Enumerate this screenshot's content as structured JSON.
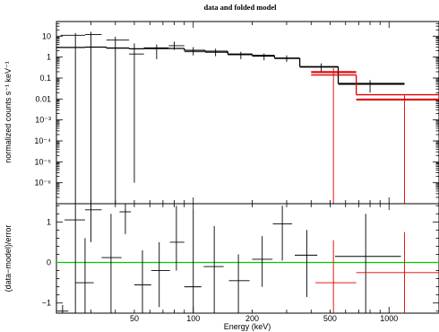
{
  "chart_data": [
    {
      "type": "scatter",
      "title": "data and folded model",
      "xlabel": "",
      "ylabel": "normalized counts s⁻¹ keV⁻¹",
      "x_scale": "log",
      "y_scale": "log",
      "xlim": [
        20,
        1800
      ],
      "ylim": [
        1e-07,
        50
      ],
      "y_ticks": [
        {
          "value": 10,
          "label": "10"
        },
        {
          "value": 1,
          "label": "1"
        },
        {
          "value": 0.1,
          "label": "0.1"
        },
        {
          "value": 0.01,
          "label": "0.01"
        },
        {
          "value": 0.001,
          "label": "10⁻³"
        },
        {
          "value": 0.0001,
          "label": "10⁻⁴"
        },
        {
          "value": 1e-05,
          "label": "10⁻⁵"
        },
        {
          "value": 1e-06,
          "label": "10⁻⁶"
        }
      ],
      "series": [
        {
          "color": "#000000",
          "style": "data-crosses",
          "points": [
            {
              "x": 25,
              "xlo": 21,
              "xhi": 28,
              "y": 11,
              "ylo": 1e-07,
              "yhi": 14
            },
            {
              "x": 30,
              "xlo": 28,
              "xhi": 34,
              "y": 12,
              "ylo": 1e-07,
              "yhi": 16
            },
            {
              "x": 40,
              "xlo": 36,
              "xhi": 47,
              "y": 6.5,
              "ylo": 1e-07,
              "yhi": 9.5
            },
            {
              "x": 50,
              "xlo": 47,
              "xhi": 56,
              "y": 1.4,
              "ylo": 1e-06,
              "yhi": 4.5
            },
            {
              "x": 65,
              "xlo": 56,
              "xhi": 75,
              "y": 2.5,
              "ylo": 0.8,
              "yhi": 4
            },
            {
              "x": 80,
              "xlo": 75,
              "xhi": 90,
              "y": 3.5,
              "ylo": 2.2,
              "yhi": 5.5
            },
            {
              "x": 100,
              "xlo": 90,
              "xhi": 115,
              "y": 1.8,
              "ylo": 1.2,
              "yhi": 3
            },
            {
              "x": 130,
              "xlo": 115,
              "xhi": 150,
              "y": 1.7,
              "ylo": 1.1,
              "yhi": 2.5
            },
            {
              "x": 175,
              "xlo": 150,
              "xhi": 200,
              "y": 1.3,
              "ylo": 0.8,
              "yhi": 1.8
            },
            {
              "x": 230,
              "xlo": 200,
              "xhi": 260,
              "y": 1.1,
              "ylo": 0.7,
              "yhi": 1.5
            },
            {
              "x": 300,
              "xlo": 260,
              "xhi": 350,
              "y": 0.85,
              "ylo": 0.6,
              "yhi": 1.2
            },
            {
              "x": 450,
              "xlo": 350,
              "xhi": 550,
              "y": 0.33,
              "ylo": 0.2,
              "yhi": 0.5
            },
            {
              "x": 800,
              "xlo": 550,
              "xhi": 1200,
              "y": 0.05,
              "ylo": 0.02,
              "yhi": 0.08
            }
          ]
        },
        {
          "color": "#e00000",
          "style": "data-crosses",
          "points": [
            {
              "x": 520,
              "xlo": 400,
              "xhi": 680,
              "y": 0.18,
              "ylo": 1e-07,
              "yhi": 0.3
            },
            {
              "x": 1200,
              "xlo": 680,
              "xhi": 1800,
              "y": 0.01,
              "ylo": 1e-07,
              "yhi": 0.015
            }
          ]
        },
        {
          "color": "#000000",
          "style": "model-steps",
          "steps": [
            {
              "xlo": 20,
              "xhi": 28,
              "y": 2.9
            },
            {
              "xlo": 28,
              "xhi": 36,
              "y": 3.0
            },
            {
              "xlo": 36,
              "xhi": 47,
              "y": 2.7
            },
            {
              "xlo": 47,
              "xhi": 56,
              "y": 2.5
            },
            {
              "xlo": 56,
              "xhi": 75,
              "y": 2.7
            },
            {
              "xlo": 75,
              "xhi": 90,
              "y": 2.6
            },
            {
              "xlo": 90,
              "xhi": 115,
              "y": 2.1
            },
            {
              "xlo": 115,
              "xhi": 150,
              "y": 1.9
            },
            {
              "xlo": 150,
              "xhi": 200,
              "y": 1.4
            },
            {
              "xlo": 200,
              "xhi": 260,
              "y": 1.2
            },
            {
              "xlo": 260,
              "xhi": 350,
              "y": 0.9
            },
            {
              "xlo": 350,
              "xhi": 550,
              "y": 0.35
            },
            {
              "xlo": 550,
              "xhi": 1200,
              "y": 0.055
            }
          ]
        },
        {
          "color": "#e00000",
          "style": "model-steps",
          "steps": [
            {
              "xlo": 400,
              "xhi": 680,
              "y": 0.2
            },
            {
              "xlo": 400,
              "xhi": 680,
              "y": 0.14
            },
            {
              "xlo": 680,
              "xhi": 1800,
              "y": 0.016
            },
            {
              "xlo": 680,
              "xhi": 1800,
              "y": 0.009
            }
          ]
        }
      ]
    },
    {
      "type": "scatter",
      "title": "",
      "xlabel": "Energy (keV)",
      "ylabel": "(data−model)/error",
      "x_scale": "log",
      "y_scale": "linear",
      "xlim": [
        20,
        1800
      ],
      "ylim": [
        -1.25,
        1.45
      ],
      "x_ticks": [
        {
          "value": 50,
          "label": "50"
        },
        {
          "value": 100,
          "label": "100"
        },
        {
          "value": 200,
          "label": "200"
        },
        {
          "value": 500,
          "label": "500"
        },
        {
          "value": 1000,
          "label": "1000"
        }
      ],
      "y_ticks": [
        {
          "value": 1,
          "label": "1"
        },
        {
          "value": 0,
          "label": "0"
        },
        {
          "value": -1,
          "label": "−1"
        }
      ],
      "reference_line": {
        "y": 0,
        "color": "#00cc00"
      },
      "series": [
        {
          "color": "#000000",
          "style": "data-crosses",
          "points": [
            {
              "x": 21.5,
              "xlo": 20.5,
              "xhi": 23,
              "y": -1.2,
              "ylo": -1.25,
              "yhi": -1.05
            },
            {
              "x": 25,
              "xlo": 22,
              "xhi": 28,
              "y": 1.05,
              "ylo": -1.25,
              "yhi": 1.45
            },
            {
              "x": 28,
              "xlo": 25,
              "xhi": 31,
              "y": -0.5,
              "ylo": -1.25,
              "yhi": 0.6
            },
            {
              "x": 30,
              "xlo": 28,
              "xhi": 34,
              "y": 1.3,
              "ylo": 0.5,
              "yhi": 1.45
            },
            {
              "x": 38,
              "xlo": 34,
              "xhi": 43,
              "y": 0.12,
              "ylo": -1.25,
              "yhi": 1.2
            },
            {
              "x": 45,
              "xlo": 42,
              "xhi": 48,
              "y": 1.25,
              "ylo": 0.7,
              "yhi": 1.45
            },
            {
              "x": 55,
              "xlo": 50,
              "xhi": 61,
              "y": -0.55,
              "ylo": -1.25,
              "yhi": 0.3
            },
            {
              "x": 67,
              "xlo": 61,
              "xhi": 76,
              "y": -0.2,
              "ylo": -1.1,
              "yhi": 0.5
            },
            {
              "x": 82,
              "xlo": 76,
              "xhi": 90,
              "y": 0.5,
              "ylo": -0.2,
              "yhi": 1.4
            },
            {
              "x": 100,
              "xlo": 90,
              "xhi": 110,
              "y": -0.6,
              "ylo": -1.25,
              "yhi": 1.3
            },
            {
              "x": 128,
              "xlo": 113,
              "xhi": 143,
              "y": -0.1,
              "ylo": -1.25,
              "yhi": 0.9
            },
            {
              "x": 170,
              "xlo": 152,
              "xhi": 194,
              "y": -0.45,
              "ylo": -1.25,
              "yhi": 0.2
            },
            {
              "x": 225,
              "xlo": 200,
              "xhi": 254,
              "y": 0.08,
              "ylo": -0.6,
              "yhi": 0.65
            },
            {
              "x": 285,
              "xlo": 255,
              "xhi": 320,
              "y": 0.95,
              "ylo": 0.05,
              "yhi": 1.4
            },
            {
              "x": 380,
              "xlo": 330,
              "xhi": 430,
              "y": 0.18,
              "ylo": -0.85,
              "yhi": 0.8
            },
            {
              "x": 760,
              "xlo": 530,
              "xhi": 1150,
              "y": 0.15,
              "ylo": -1.25,
              "yhi": 1.2
            }
          ]
        },
        {
          "color": "#e00000",
          "style": "data-crosses",
          "points": [
            {
              "x": 520,
              "xlo": 420,
              "xhi": 680,
              "y": -0.5,
              "ylo": -1.25,
              "yhi": 0.55
            },
            {
              "x": 1200,
              "xlo": 680,
              "xhi": 1800,
              "y": -0.25,
              "ylo": -1.25,
              "yhi": 0.75
            }
          ]
        }
      ]
    }
  ]
}
